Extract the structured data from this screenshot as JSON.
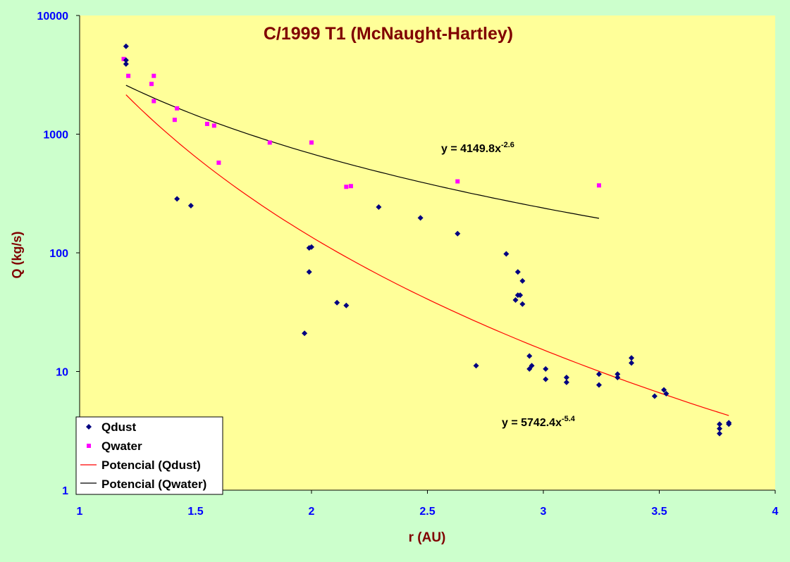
{
  "colors": {
    "background": "#ccffcc",
    "plot_area": "#ffff99",
    "axis_text": "#0000ff",
    "title": "#800000",
    "axis_label": "#800000",
    "dust_marker": "#000080",
    "water_marker": "#ff00ff",
    "dust_fit": "#ff0000",
    "water_fit": "#000000"
  },
  "chart_data": {
    "type": "scatter",
    "title": "C/1999 T1 (McNaught-Hartley)",
    "xlabel": "r (AU)",
    "ylabel": "Q (kg/s)",
    "xlim": [
      1,
      4
    ],
    "ylim": [
      1,
      10000
    ],
    "y_scale": "log",
    "x_ticks": [
      "1",
      "1.5",
      "2",
      "2.5",
      "3",
      "3.5",
      "4"
    ],
    "y_ticks": [
      "1",
      "10",
      "100",
      "1000",
      "10000"
    ],
    "grid": false,
    "legend_position": "bottom-left",
    "series": [
      {
        "name": "Qdust",
        "kind": "scatter",
        "marker": "diamond",
        "points": [
          [
            1.2,
            5500
          ],
          [
            1.2,
            4200
          ],
          [
            1.2,
            3900
          ],
          [
            1.42,
            285
          ],
          [
            1.48,
            250
          ],
          [
            1.97,
            21
          ],
          [
            1.99,
            110
          ],
          [
            2.0,
            112
          ],
          [
            1.99,
            69
          ],
          [
            2.11,
            38
          ],
          [
            2.15,
            36
          ],
          [
            2.29,
            243
          ],
          [
            2.47,
            197
          ],
          [
            2.63,
            145
          ],
          [
            2.71,
            11.2
          ],
          [
            2.84,
            98
          ],
          [
            2.89,
            69
          ],
          [
            2.91,
            58
          ],
          [
            2.89,
            44
          ],
          [
            2.88,
            40
          ],
          [
            2.9,
            44
          ],
          [
            2.91,
            37
          ],
          [
            2.94,
            13.5
          ],
          [
            2.95,
            11.2
          ],
          [
            2.94,
            10.5
          ],
          [
            3.01,
            10.5
          ],
          [
            3.01,
            8.6
          ],
          [
            3.1,
            8.9
          ],
          [
            3.1,
            8.1
          ],
          [
            3.24,
            9.5
          ],
          [
            3.24,
            7.7
          ],
          [
            3.32,
            9.5
          ],
          [
            3.32,
            8.9
          ],
          [
            3.38,
            13
          ],
          [
            3.38,
            11.8
          ],
          [
            3.48,
            6.2
          ],
          [
            3.52,
            7
          ],
          [
            3.53,
            6.5
          ],
          [
            3.76,
            3.6
          ],
          [
            3.76,
            3.3
          ],
          [
            3.76,
            3.0
          ],
          [
            3.8,
            3.7
          ],
          [
            3.8,
            3.6
          ]
        ]
      },
      {
        "name": "Qwater",
        "kind": "scatter",
        "marker": "square",
        "points": [
          [
            1.19,
            4300
          ],
          [
            1.21,
            3100
          ],
          [
            1.31,
            2650
          ],
          [
            1.32,
            3100
          ],
          [
            1.32,
            1900
          ],
          [
            1.41,
            1320
          ],
          [
            1.42,
            1650
          ],
          [
            1.55,
            1220
          ],
          [
            1.58,
            1180
          ],
          [
            1.6,
            575
          ],
          [
            1.82,
            850
          ],
          [
            2.0,
            850
          ],
          [
            2.15,
            360
          ],
          [
            2.17,
            365
          ],
          [
            2.63,
            400
          ],
          [
            3.24,
            370
          ]
        ]
      },
      {
        "name": "Potencial (Qdust)",
        "kind": "power-fit",
        "coef": 5742.4,
        "exponent": -5.4,
        "x_range": [
          1.2,
          3.8
        ],
        "equation_text": "y = 5742.4x",
        "equation_exponent": "-5.4"
      },
      {
        "name": "Potencial (Qwater)",
        "kind": "power-fit",
        "coef": 4149.8,
        "exponent": -2.6,
        "x_range": [
          1.2,
          3.24
        ],
        "equation_text": "y = 4149.8x",
        "equation_exponent": "-2.6"
      }
    ]
  }
}
